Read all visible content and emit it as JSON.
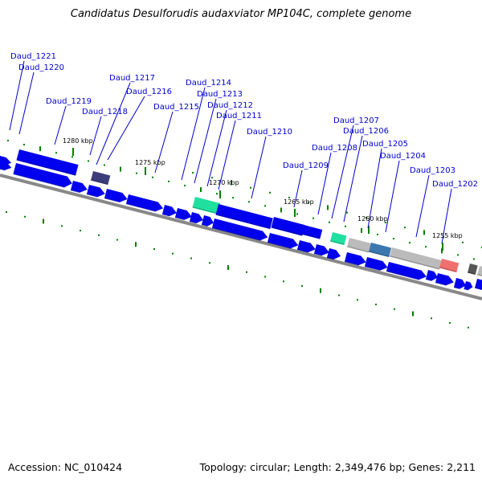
{
  "title": "Candidatus Desulforudis audaxviator MP104C, complete genome",
  "footer": {
    "accession": "Accession: NC_010424",
    "summary": "Topology: circular; Length: 2,349,476 bp; Genes: 2,211"
  },
  "colors": {
    "gene": "#0000ee",
    "label": "#0000cc",
    "tick": "#008000",
    "backbone": "#888888",
    "gene_teal": "#20e0a0",
    "gene_purple": "#3d3d7a",
    "gene_grey": "#bbbbbb",
    "gene_steelblue": "#3b78b0",
    "gene_salmon": "#f07070",
    "gene_darkgrey": "#555555"
  },
  "scale_labels": [
    "1280 kbp",
    "1275 kbp",
    "1270 kbp",
    "1265 kbp",
    "1260 kbp",
    "1255 kbp"
  ],
  "gene_labels": [
    "Daud_1221",
    "Daud_1220",
    "Daud_1219",
    "Daud_1218",
    "Daud_1217",
    "Daud_1216",
    "Daud_1215",
    "Daud_1214",
    "Daud_1213",
    "Daud_1212",
    "Daud_1211",
    "Daud_1210",
    "Daud_1209",
    "Daud_1208",
    "Daud_1207",
    "Daud_1206",
    "Daud_1205",
    "Daud_1204",
    "Daud_1203",
    "Daud_1202"
  ]
}
